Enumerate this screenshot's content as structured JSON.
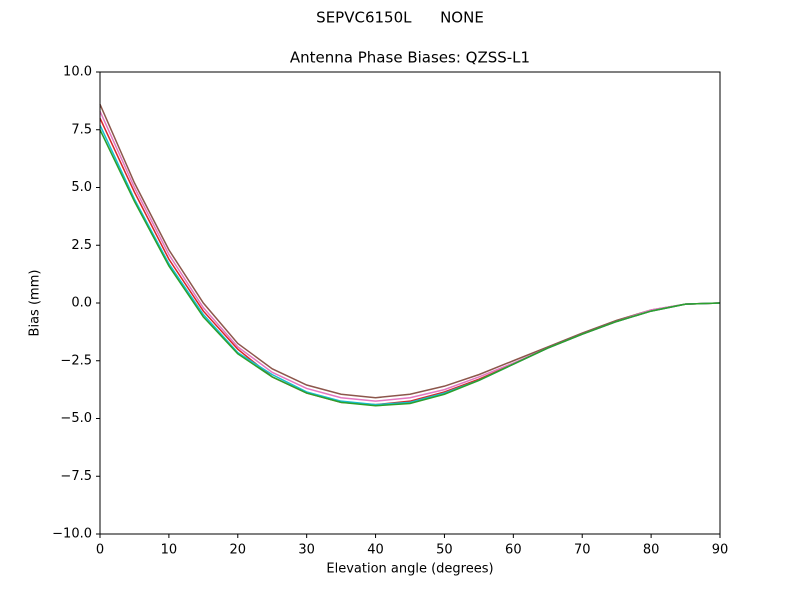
{
  "chart_data": {
    "type": "line",
    "suptitle": "SEPVC6150L      NONE",
    "title": "Antenna Phase Biases: QZSS-L1",
    "xlabel": "Elevation angle (degrees)",
    "ylabel": "Bias (mm)",
    "x": [
      0,
      5,
      10,
      15,
      20,
      25,
      30,
      35,
      40,
      45,
      50,
      55,
      60,
      65,
      70,
      75,
      80,
      85,
      90
    ],
    "series": [
      {
        "color": "#8c564b",
        "values": [
          8.6,
          5.2,
          2.3,
          0.0,
          -1.75,
          -2.85,
          -3.55,
          -3.95,
          -4.1,
          -3.95,
          -3.6,
          -3.1,
          -2.5,
          -1.9,
          -1.3,
          -0.75,
          -0.3,
          -0.05,
          0
        ]
      },
      {
        "color": "#e377c2",
        "values": [
          8.3,
          5.0,
          2.1,
          -0.2,
          -1.9,
          -3.0,
          -3.7,
          -4.1,
          -4.25,
          -4.1,
          -3.75,
          -3.2,
          -2.6,
          -1.95,
          -1.35,
          -0.8,
          -0.3,
          -0.05,
          0
        ]
      },
      {
        "color": "#d62728",
        "values": [
          8.0,
          4.8,
          1.9,
          -0.35,
          -2.0,
          -3.2,
          -3.9,
          -4.3,
          -4.4,
          -4.25,
          -3.85,
          -3.3,
          -2.65,
          -1.95,
          -1.35,
          -0.8,
          -0.35,
          -0.05,
          0
        ]
      },
      {
        "color": "#17becf",
        "values": [
          7.7,
          4.5,
          1.7,
          -0.5,
          -2.15,
          -3.1,
          -3.85,
          -4.25,
          -4.4,
          -4.3,
          -3.9,
          -3.35,
          -2.65,
          -1.95,
          -1.35,
          -0.8,
          -0.35,
          -0.05,
          0
        ]
      },
      {
        "color": "#2ca02c",
        "values": [
          7.5,
          4.4,
          1.6,
          -0.6,
          -2.2,
          -3.2,
          -3.9,
          -4.3,
          -4.45,
          -4.35,
          -3.95,
          -3.35,
          -2.65,
          -1.95,
          -1.35,
          -0.8,
          -0.35,
          -0.05,
          0
        ]
      }
    ],
    "xlim": [
      0,
      90
    ],
    "xticks": [
      0,
      10,
      20,
      30,
      40,
      50,
      60,
      70,
      80,
      90
    ],
    "ylim": [
      -10,
      10
    ],
    "yticks": [
      {
        "value": -10,
        "label": "−10.0"
      },
      {
        "value": -7.5,
        "label": "−7.5"
      },
      {
        "value": -5,
        "label": "−5.0"
      },
      {
        "value": -2.5,
        "label": "−2.5"
      },
      {
        "value": 0,
        "label": "0.0"
      },
      {
        "value": 2.5,
        "label": "2.5"
      },
      {
        "value": 5,
        "label": "5.0"
      },
      {
        "value": 7.5,
        "label": "7.5"
      },
      {
        "value": 10,
        "label": "10.0"
      }
    ],
    "grid": false
  }
}
